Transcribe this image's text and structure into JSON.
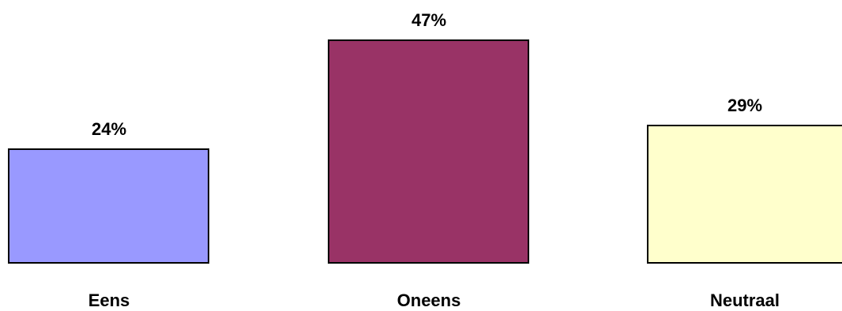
{
  "chart_data": {
    "type": "bar",
    "categories": [
      "Eens",
      "Oneens",
      "Neutraal"
    ],
    "values": [
      24,
      47,
      29
    ],
    "value_labels": [
      "24%",
      "47%",
      "29%"
    ],
    "colors": [
      "#9999ff",
      "#993366",
      "#ffffcc"
    ],
    "ylim": [
      0,
      47
    ],
    "grid": false,
    "title": "",
    "xlabel": "",
    "ylabel": ""
  }
}
